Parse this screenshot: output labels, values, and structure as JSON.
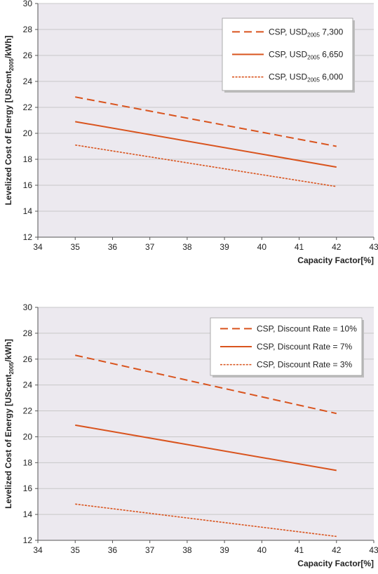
{
  "colors": {
    "line": "#d9541e",
    "grid": "#c8c8c8",
    "axis": "#555555",
    "plot_bg": "#ece9ef",
    "legend_bg": "#ffffff"
  },
  "chart_data": [
    {
      "type": "line",
      "title": "",
      "xlabel": "Capacity Factor[%]",
      "ylabel": "Levelized Cost of Energy [UScent2005/kWh]",
      "xlim": [
        34,
        43
      ],
      "ylim": [
        12,
        30
      ],
      "xticks": [
        34,
        35,
        36,
        37,
        38,
        39,
        40,
        41,
        42,
        43
      ],
      "yticks": [
        12,
        14,
        16,
        18,
        20,
        22,
        24,
        26,
        28,
        30
      ],
      "grid": true,
      "legend_position": "top-right",
      "series": [
        {
          "name": "CSP, USD2005 7,300",
          "style": "dashed",
          "x": [
            35,
            42
          ],
          "y": [
            22.8,
            19.0
          ]
        },
        {
          "name": "CSP, USD2005 6,650",
          "style": "solid",
          "x": [
            35,
            42
          ],
          "y": [
            20.9,
            17.4
          ]
        },
        {
          "name": "CSP, USD2005 6,000",
          "style": "dotted",
          "x": [
            35,
            42
          ],
          "y": [
            19.1,
            15.9
          ]
        }
      ]
    },
    {
      "type": "line",
      "title": "",
      "xlabel": "Capacity Factor[%]",
      "ylabel": "Levelized Cost of Energy [UScent2005/kWh]",
      "xlim": [
        34,
        43
      ],
      "ylim": [
        12,
        30
      ],
      "xticks": [
        34,
        35,
        36,
        37,
        38,
        39,
        40,
        41,
        42,
        43
      ],
      "yticks": [
        12,
        14,
        16,
        18,
        20,
        22,
        24,
        26,
        28,
        30
      ],
      "grid": true,
      "legend_position": "top-right",
      "series": [
        {
          "name": "CSP, Discount Rate = 10%",
          "style": "dashed",
          "x": [
            35,
            42
          ],
          "y": [
            26.3,
            21.8
          ]
        },
        {
          "name": "CSP, Discount Rate = 7%",
          "style": "solid",
          "x": [
            35,
            42
          ],
          "y": [
            20.9,
            17.4
          ]
        },
        {
          "name": "CSP, Discount Rate = 3%",
          "style": "dotted",
          "x": [
            35,
            42
          ],
          "y": [
            14.8,
            12.3
          ]
        }
      ]
    }
  ]
}
